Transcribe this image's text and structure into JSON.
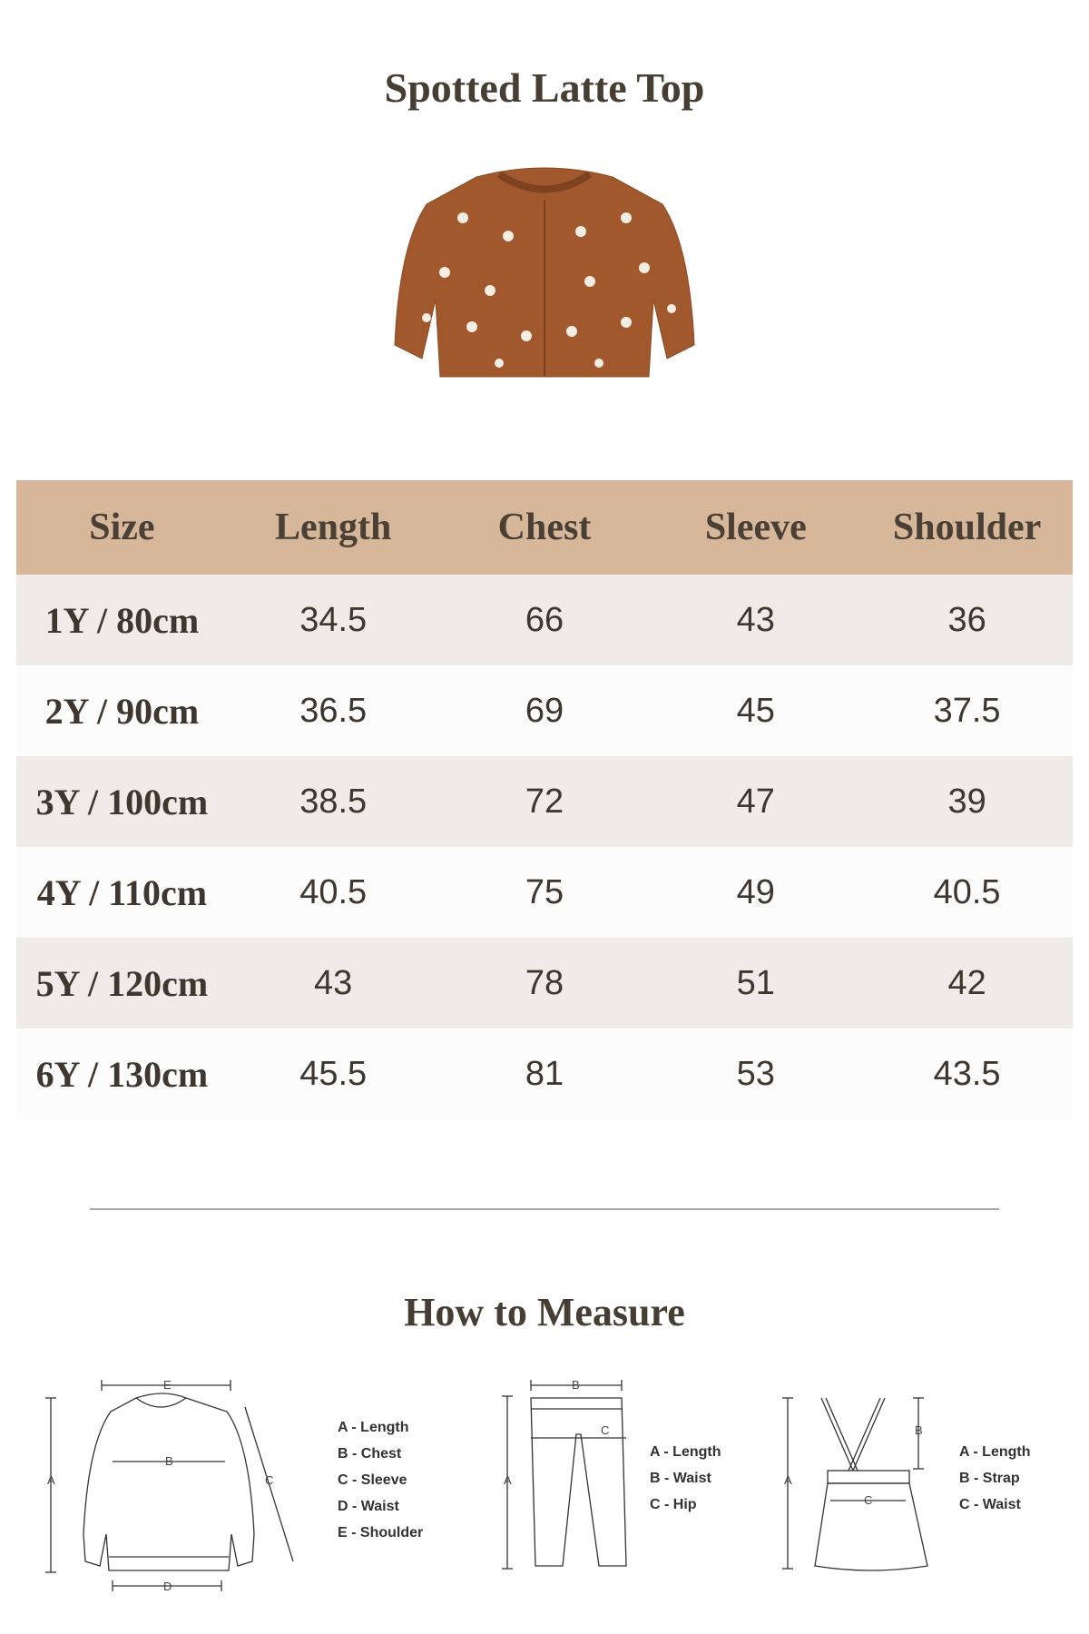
{
  "title": "Spotted Latte Top",
  "product_image": {
    "alt": "brown dalmatian print cardigan",
    "color": "#a0582c"
  },
  "table": {
    "header_color": "#d7b79a",
    "headers": [
      "Size",
      "Length",
      "Chest",
      "Sleeve",
      "Shoulder"
    ],
    "rows": [
      [
        "1Y / 80cm",
        "34.5",
        "66",
        "43",
        "36"
      ],
      [
        "2Y / 90cm",
        "36.5",
        "69",
        "45",
        "37.5"
      ],
      [
        "3Y / 100cm",
        "38.5",
        "72",
        "47",
        "39"
      ],
      [
        "4Y / 110cm",
        "40.5",
        "75",
        "49",
        "40.5"
      ],
      [
        "5Y / 120cm",
        "43",
        "78",
        "51",
        "42"
      ],
      [
        "6Y / 130cm",
        "45.5",
        "81",
        "53",
        "43.5"
      ]
    ]
  },
  "how_to_measure": {
    "title": "How to Measure",
    "top": {
      "markers": [
        "A",
        "B",
        "C",
        "D",
        "E"
      ],
      "legend": [
        "A - Length",
        "B - Chest",
        "C - Sleeve",
        "D - Waist",
        "E - Shoulder"
      ]
    },
    "pants": {
      "markers": [
        "A",
        "B",
        "C"
      ],
      "legend": [
        "A - Length",
        "B - Waist",
        "C - Hip"
      ]
    },
    "skirt": {
      "markers": [
        "A",
        "B",
        "C"
      ],
      "legend": [
        "A - Length",
        "B - Strap",
        "C - Waist"
      ]
    }
  }
}
